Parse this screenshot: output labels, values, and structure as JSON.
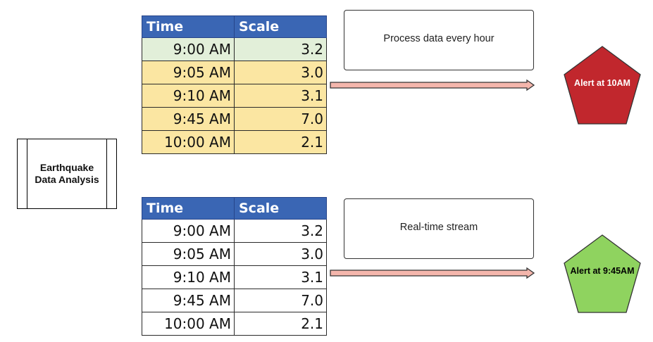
{
  "colors": {
    "header_bg": "#3a66b4",
    "green_row": "#e2efd9",
    "yellow_row": "#fbe6a2",
    "white_row": "#ffffff",
    "arrow_fill": "#f4b6ac",
    "alert_red": "#c1272d",
    "alert_green": "#8fd35f"
  },
  "icons": {
    "arrow": "right-arrow-icon"
  },
  "source": {
    "label": "Earthquake Data Analysis"
  },
  "table_top": {
    "headers": [
      "Time",
      "Scale"
    ],
    "rows": [
      {
        "time": "9:00 AM",
        "scale": "3.2",
        "color": "#e2efd9"
      },
      {
        "time": "9:05 AM",
        "scale": "3.0",
        "color": "#fbe6a2"
      },
      {
        "time": "9:10 AM",
        "scale": "3.1",
        "color": "#fbe6a2"
      },
      {
        "time": "9:45 AM",
        "scale": "7.0",
        "color": "#fbe6a2"
      },
      {
        "time": "10:00 AM",
        "scale": "2.1",
        "color": "#fbe6a2"
      }
    ]
  },
  "table_bottom": {
    "headers": [
      "Time",
      "Scale"
    ],
    "rows": [
      {
        "time": "9:00 AM",
        "scale": "3.2",
        "color": "#ffffff"
      },
      {
        "time": "9:05 AM",
        "scale": "3.0",
        "color": "#ffffff"
      },
      {
        "time": "9:10 AM",
        "scale": "3.1",
        "color": "#ffffff"
      },
      {
        "time": "9:45 AM",
        "scale": "7.0",
        "color": "#ffffff"
      },
      {
        "time": "10:00 AM",
        "scale": "2.1",
        "color": "#ffffff"
      }
    ]
  },
  "batch": {
    "label": "Process data every hour"
  },
  "stream": {
    "label": "Real-time stream"
  },
  "alert_batch": {
    "label": "Alert at 10AM",
    "color": "#c1272d",
    "text_color": "#ffffff"
  },
  "alert_stream": {
    "label": "Alert at 9:45AM",
    "color": "#8fd35f",
    "text_color": "#000000"
  }
}
